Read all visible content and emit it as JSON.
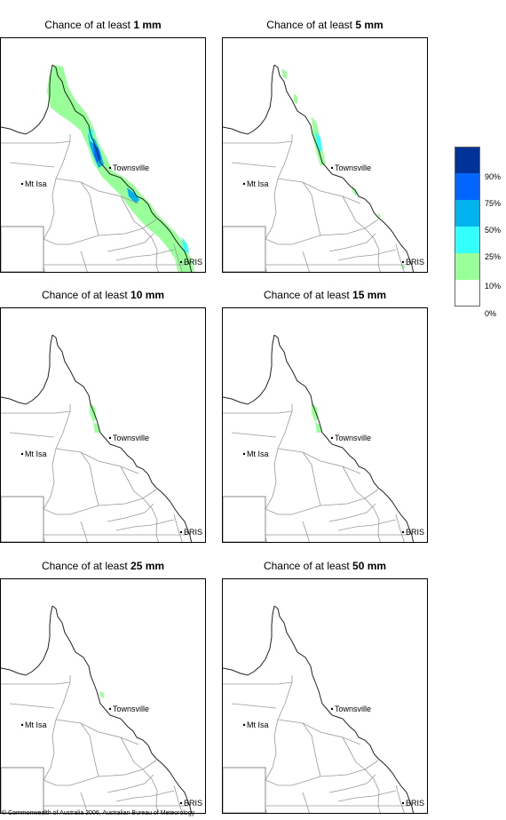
{
  "panels": [
    {
      "title_prefix": "Chance of at least ",
      "threshold": "1 mm",
      "cover": "full"
    },
    {
      "title_prefix": "Chance of at least ",
      "threshold": "5 mm",
      "cover": "sparse"
    },
    {
      "title_prefix": "Chance of at least ",
      "threshold": "10 mm",
      "cover": "small"
    },
    {
      "title_prefix": "Chance of at least ",
      "threshold": "15 mm",
      "cover": "small"
    },
    {
      "title_prefix": "Chance of at least ",
      "threshold": "25 mm",
      "cover": "tiny"
    },
    {
      "title_prefix": "Chance of at least ",
      "threshold": "50 mm",
      "cover": "none"
    }
  ],
  "places": {
    "townsville": "Townsville",
    "mt_isa": "Mt Isa",
    "bris": "BRIS"
  },
  "legend": {
    "colors": [
      "#003399",
      "#0066ff",
      "#00b2ee",
      "#33ffff",
      "#99ff99",
      "#ffffff"
    ],
    "labels": [
      "90%",
      "75%",
      "50%",
      "25%",
      "10%",
      "0%"
    ]
  },
  "copyright": "© Commonwealth of Australia 2006, Australian Bureau of Meteorology"
}
